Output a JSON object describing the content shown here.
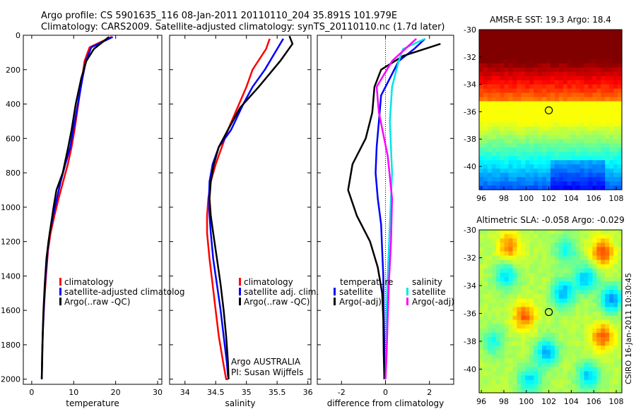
{
  "header": {
    "line1": "Argo profile: CS 5901635_116 08-Jan-2011 20110110_204 35.891S 101.979E",
    "line2": "Climatology: CARS2009. Satellite-adjusted climatology: synTS_20110110.nc (1.7d later)"
  },
  "side_credit": "CSIRO 16-Jan-2011 10:30:45",
  "colors": {
    "climatology": "#ff0000",
    "satellite": "#0000ff",
    "argo": "#000000",
    "sat_salinity": "#00e5e5",
    "argo_salinity": "#ff00ff",
    "marker": "#000000"
  },
  "chart_data": [
    {
      "type": "line",
      "xlabel": "temperature",
      "ylabel": "",
      "xlim": [
        -2,
        31
      ],
      "ylim": [
        2030,
        0
      ],
      "y_reversed": true,
      "xticks": [
        0,
        10,
        20,
        30
      ],
      "yticks": [
        0,
        200,
        400,
        600,
        800,
        1000,
        1200,
        1400,
        1600,
        1800,
        2000
      ],
      "series": [
        {
          "name": "climatology",
          "color_key": "climatology",
          "x": [
            19.0,
            13.8,
            12.6,
            12.0,
            11.1,
            10.2,
            9.5,
            8.6,
            7.5,
            6.4,
            5.4,
            4.5,
            3.9,
            3.4,
            3.0,
            2.7,
            2.5,
            2.4
          ],
          "y": [
            10,
            70,
            150,
            250,
            400,
            550,
            650,
            750,
            850,
            950,
            1050,
            1150,
            1250,
            1400,
            1550,
            1700,
            1850,
            2000
          ]
        },
        {
          "name": "satellite-adjusted climatology",
          "color_key": "satellite",
          "x": [
            19.3,
            14.2,
            12.9,
            12.1,
            11.0,
            9.9,
            9.2,
            8.0,
            6.9,
            6.0,
            5.1,
            4.3,
            3.8,
            3.3,
            2.95,
            2.7,
            2.5,
            2.4
          ],
          "y": [
            10,
            70,
            150,
            250,
            400,
            550,
            650,
            750,
            850,
            950,
            1050,
            1150,
            1250,
            1400,
            1550,
            1700,
            1850,
            2000
          ]
        },
        {
          "name": "Argo(..raw -QC)",
          "color_key": "argo",
          "x": [
            18.4,
            14.8,
            13.0,
            11.8,
            10.5,
            9.5,
            8.7,
            7.4,
            5.9,
            5.2,
            4.6,
            4.0,
            3.5,
            3.1,
            2.8,
            2.6,
            2.5,
            2.4
          ],
          "y": [
            10,
            80,
            150,
            250,
            400,
            550,
            650,
            800,
            900,
            1000,
            1100,
            1200,
            1300,
            1450,
            1600,
            1750,
            1900,
            2000
          ]
        }
      ]
    },
    {
      "type": "line",
      "xlabel": "salinity",
      "ylabel": "",
      "xlim": [
        33.75,
        36.05
      ],
      "ylim": [
        2030,
        0
      ],
      "y_reversed": true,
      "xticks": [
        34,
        34.5,
        35,
        35.5,
        36
      ],
      "series": [
        {
          "name": "climatology",
          "color_key": "climatology",
          "x": [
            35.38,
            35.32,
            35.1,
            35.0,
            34.88,
            34.7,
            34.6,
            34.5,
            34.42,
            34.38,
            34.36,
            34.36,
            34.4,
            34.45,
            34.5,
            34.55,
            34.62,
            34.67,
            34.7
          ],
          "y": [
            20,
            80,
            200,
            300,
            400,
            550,
            650,
            750,
            850,
            950,
            1050,
            1150,
            1300,
            1450,
            1600,
            1750,
            1900,
            2000,
            2000
          ]
        },
        {
          "name": "satellite adj. clim.",
          "color_key": "satellite",
          "x": [
            35.6,
            35.5,
            35.3,
            35.1,
            34.95,
            34.75,
            34.55,
            34.45,
            34.4,
            34.39,
            34.4,
            34.42,
            34.46,
            34.52,
            34.58,
            34.63,
            34.68,
            34.7,
            34.71
          ],
          "y": [
            20,
            80,
            200,
            300,
            400,
            550,
            650,
            750,
            850,
            950,
            1050,
            1150,
            1300,
            1450,
            1600,
            1750,
            1900,
            1980,
            2000
          ]
        },
        {
          "name": "Argo(..raw -QC)",
          "color_key": "argo",
          "x": [
            35.7,
            35.75,
            35.55,
            35.2,
            34.9,
            34.7,
            34.55,
            34.47,
            34.42,
            34.4,
            34.42,
            34.46,
            34.52,
            34.58,
            34.63,
            34.67,
            34.7,
            34.71
          ],
          "y": [
            5,
            50,
            150,
            300,
            420,
            550,
            650,
            750,
            850,
            950,
            1050,
            1150,
            1300,
            1450,
            1600,
            1750,
            1900,
            2000
          ]
        }
      ]
    },
    {
      "type": "line",
      "xlabel": "difference from climatology",
      "ylabel": "",
      "xlim": [
        -3.1,
        3.1
      ],
      "ylim": [
        2030,
        0
      ],
      "y_reversed": true,
      "xticks": [
        -2,
        0,
        2
      ],
      "zero_line": true,
      "legend_groups": [
        "temperature",
        "salinity"
      ],
      "series": [
        {
          "name": "satellite",
          "group": "temperature",
          "color_key": "satellite",
          "x": [
            1.8,
            1.3,
            0.6,
            0.2,
            -0.2,
            -0.3,
            -0.4,
            -0.45,
            -0.35,
            -0.2,
            -0.15,
            -0.1,
            -0.08,
            -0.05,
            -0.05
          ],
          "y": [
            20,
            80,
            150,
            250,
            350,
            500,
            650,
            800,
            950,
            1100,
            1250,
            1400,
            1600,
            1800,
            2000
          ]
        },
        {
          "name": "Argo(-adj)",
          "group": "temperature",
          "color_key": "argo",
          "x": [
            2.5,
            0.8,
            -0.2,
            -0.5,
            -0.6,
            -0.9,
            -1.5,
            -1.7,
            -1.3,
            -0.7,
            -0.35,
            -0.15,
            -0.1,
            -0.08,
            -0.05
          ],
          "y": [
            50,
            120,
            200,
            300,
            450,
            600,
            750,
            900,
            1050,
            1200,
            1350,
            1500,
            1650,
            1850,
            2000
          ]
        },
        {
          "name": "satellite",
          "group": "salinity",
          "color_key": "sat_salinity",
          "x": [
            1.8,
            0.8,
            0.6,
            0.3,
            0.2,
            0.3,
            0.2,
            0.1,
            0.05,
            0.05,
            0.0
          ],
          "y": [
            20,
            80,
            150,
            300,
            500,
            800,
            1100,
            1400,
            1600,
            1800,
            2000
          ]
        },
        {
          "name": "Argo(-adj)",
          "group": "salinity",
          "color_key": "argo_salinity",
          "x": [
            1.4,
            0.3,
            -0.4,
            -0.3,
            0.1,
            0.3,
            0.25,
            0.15,
            0.1,
            0.05,
            0.0
          ],
          "y": [
            20,
            150,
            300,
            450,
            700,
            950,
            1200,
            1450,
            1650,
            1850,
            2000
          ]
        }
      ]
    },
    {
      "type": "heatmap",
      "title": "AMSR-E SST: 19.3  Argo: 18.4",
      "xlim": [
        95.8,
        108.5
      ],
      "ylim": [
        -41.7,
        -30.0
      ],
      "xticks": [
        96,
        98,
        100,
        102,
        104,
        106,
        108
      ],
      "yticks": [
        -30,
        -32,
        -34,
        -36,
        -38,
        -40
      ],
      "marker": {
        "x": 102.0,
        "y": -35.9
      },
      "colormap": "jet",
      "field": "sst"
    },
    {
      "type": "heatmap",
      "title": "Altimetric SLA: -0.058  Argo: -0.029",
      "xlim": [
        95.8,
        108.5
      ],
      "ylim": [
        -41.7,
        -30.0
      ],
      "xticks": [
        96,
        98,
        100,
        102,
        104,
        106,
        108
      ],
      "yticks": [
        -30,
        -32,
        -34,
        -36,
        -38,
        -40
      ],
      "marker": {
        "x": 102.0,
        "y": -35.9
      },
      "colormap": "jet",
      "field": "sla"
    }
  ],
  "legends": {
    "temp_legend": [
      "climatology",
      "satellite-adjusted climatolog",
      "Argo(..raw -QC)"
    ],
    "sal_legend": [
      "climatology",
      "satellite adj. clim.",
      "Argo(..raw -QC)"
    ],
    "sal_credit": [
      "Argo AUSTRALIA",
      "PI: Susan Wijffels"
    ],
    "diff_legend_headers": [
      "temperature",
      "salinity"
    ],
    "diff_legend_items": [
      "satellite",
      "Argo(-adj)"
    ]
  }
}
